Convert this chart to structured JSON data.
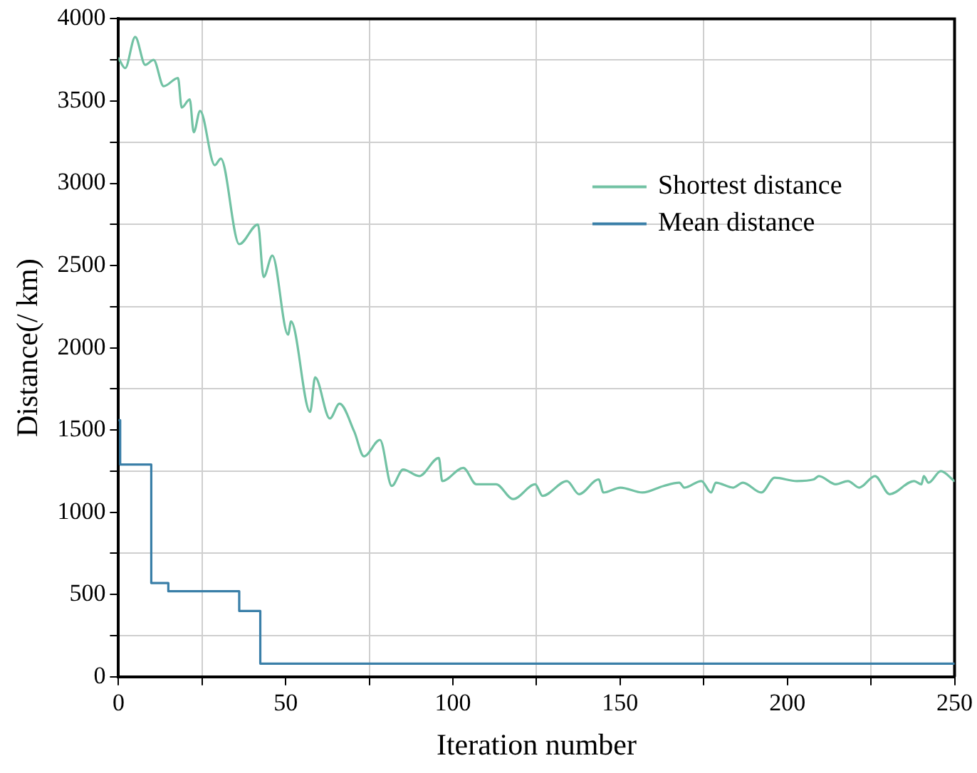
{
  "chart_data": {
    "type": "line",
    "xlabel": "Iteration number",
    "ylabel": "Distance(/ km)",
    "xlim": [
      0,
      250
    ],
    "ylim": [
      0,
      4000
    ],
    "xticks": [
      0,
      {
        "value": 25,
        "label": null
      },
      50,
      {
        "value": 75,
        "label": null
      },
      100,
      {
        "value": 125,
        "label": null
      },
      150,
      {
        "value": 175,
        "label": null
      },
      200,
      {
        "value": 225,
        "label": null
      },
      250
    ],
    "yticks": [
      0,
      {
        "value": 250,
        "label": null
      },
      500,
      {
        "value": 750,
        "label": null
      },
      1000,
      {
        "value": 1250,
        "label": null
      },
      1500,
      {
        "value": 1750,
        "label": null
      },
      2000,
      {
        "value": 2250,
        "label": null
      },
      2500,
      {
        "value": 2750,
        "label": null
      },
      3000,
      {
        "value": 3250,
        "label": null
      },
      3500,
      {
        "value": 3750,
        "label": null
      },
      4000
    ],
    "grid": true,
    "legend": "top right",
    "marker": "none",
    "line_style": "solid",
    "series": [
      {
        "name": "Shortest distance",
        "color": "#72c2a4",
        "x": [
          0,
          2,
          5,
          8,
          10.5,
          13.5,
          17.8,
          18.9,
          21.3,
          22.5,
          24.4,
          28.8,
          30.6,
          36.1,
          41.7,
          43.4,
          46,
          50.7,
          51.6,
          57.3,
          58.8,
          63.2,
          66.1,
          70.5,
          73.4,
          78.2,
          81.7,
          85.1,
          89.9,
          95.8,
          96.8,
          103.1,
          107,
          112.9,
          118,
          124.6,
          126.8,
          134.1,
          137.7,
          143.6,
          145,
          150.1,
          156.7,
          163,
          167.7,
          169.2,
          174.3,
          177.2,
          178.6,
          183.8,
          186.7,
          192.2,
          196.2,
          202.8,
          207.9,
          209.4,
          214.5,
          218.1,
          221.5,
          226.2,
          230.6,
          237.9,
          240.1,
          240.8,
          242.2,
          245.9,
          249.9
        ],
        "values": [
          3760,
          3700,
          3890,
          3720,
          3750,
          3590,
          3640,
          3460,
          3510,
          3310,
          3440,
          3110,
          3150,
          2630,
          2750,
          2430,
          2560,
          2080,
          2160,
          1610,
          1820,
          1570,
          1660,
          1490,
          1340,
          1440,
          1160,
          1260,
          1220,
          1330,
          1190,
          1270,
          1170,
          1170,
          1080,
          1170,
          1100,
          1190,
          1110,
          1200,
          1120,
          1150,
          1120,
          1160,
          1180,
          1150,
          1190,
          1120,
          1180,
          1150,
          1180,
          1120,
          1210,
          1190,
          1200,
          1220,
          1170,
          1190,
          1150,
          1220,
          1110,
          1190,
          1170,
          1220,
          1180,
          1250,
          1190
        ]
      },
      {
        "name": "Mean distance",
        "color": "#3a7fa8",
        "type": "step",
        "x": [
          0,
          0.5,
          9.8,
          14.9,
          36.1,
          42.4,
          250
        ],
        "values": [
          1560,
          1290,
          570,
          520,
          400,
          80,
          80
        ]
      }
    ]
  }
}
